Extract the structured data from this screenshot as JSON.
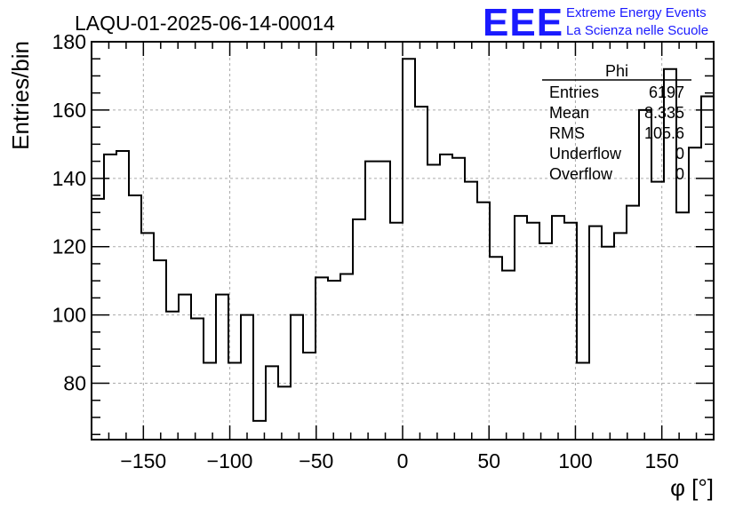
{
  "chart_data": {
    "type": "histogram",
    "title": "LAQU-01-2025-06-14-00014",
    "xlabel": "φ [°]",
    "ylabel": "Entries/bin",
    "xlim": [
      -180,
      180
    ],
    "ylim": [
      63.5,
      180
    ],
    "grid": true,
    "bin_width": 7.2,
    "x_ticks": [
      -150,
      -100,
      -50,
      0,
      50,
      100,
      150
    ],
    "x_tick_labels": [
      "−150",
      "−100",
      "−50",
      "0",
      "50",
      "100",
      "150"
    ],
    "y_ticks": [
      80,
      100,
      120,
      140,
      160,
      180
    ],
    "y_tick_labels": [
      "80",
      "100",
      "120",
      "140",
      "160",
      "180"
    ],
    "values": [
      134,
      147,
      148,
      135,
      124,
      116,
      101,
      106,
      99,
      86,
      106,
      86,
      100,
      69,
      85,
      79,
      100,
      89,
      111,
      110,
      112,
      128,
      145,
      145,
      127,
      175,
      161,
      144,
      147,
      146,
      139,
      133,
      117,
      113,
      129,
      127,
      121,
      129,
      127,
      86,
      126,
      120,
      124,
      132,
      160,
      139,
      172,
      130,
      149,
      164
    ],
    "stats": {
      "name": "Phi",
      "rows": [
        {
          "label": "Entries",
          "value": "6197"
        },
        {
          "label": "Mean",
          "value": "8.335"
        },
        {
          "label": "RMS",
          "value": "105.6"
        },
        {
          "label": "Underflow",
          "value": "0"
        },
        {
          "label": "Overflow",
          "value": "0"
        }
      ]
    }
  },
  "branding": {
    "logo": "EEE",
    "line1": "Extreme Energy Events",
    "line2": "La Scienza nelle Scuole",
    "color": "#1a1aff"
  }
}
